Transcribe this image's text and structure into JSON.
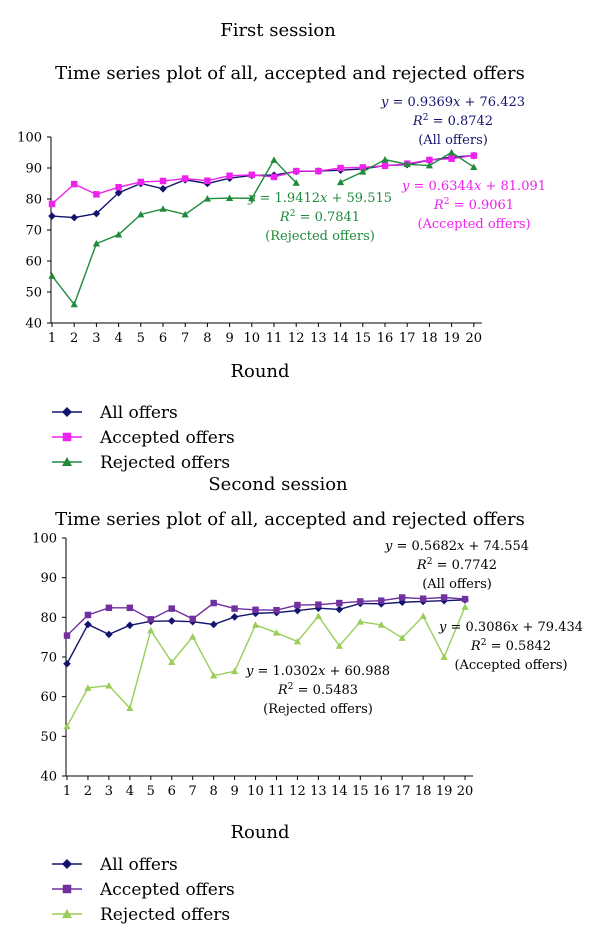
{
  "chart_data": [
    {
      "type": "line",
      "session_title": "First session",
      "title": "Time series plot of all, accepted and rejected offers",
      "xlabel": "Round",
      "ylabel": "",
      "ylim": [
        40,
        100
      ],
      "yticks": [
        "40",
        "50",
        "60",
        "70",
        "80",
        "90",
        "100"
      ],
      "x": [
        1,
        2,
        3,
        4,
        5,
        6,
        7,
        8,
        9,
        10,
        11,
        12,
        13,
        14,
        15,
        16,
        17,
        18,
        19,
        20
      ],
      "xticks": [
        "1",
        "2",
        "3",
        "4",
        "5",
        "6",
        "7",
        "8",
        "9",
        "10",
        "11",
        "12",
        "13",
        "14",
        "15",
        "16",
        "17",
        "18",
        "19",
        "20"
      ],
      "grid": false,
      "legend_position": "bottom",
      "series": [
        {
          "name": "All offers",
          "color": "#14146e",
          "marker": "diamond",
          "values": [
            74.5,
            74.0,
            75.3,
            82.0,
            85.0,
            83.3,
            86.2,
            85.0,
            86.7,
            87.6,
            87.7,
            88.9,
            89.0,
            89.3,
            89.7,
            90.8,
            91.1,
            92.5,
            93.5,
            94.0
          ]
        },
        {
          "name": "Accepted offers",
          "color": "#ee22ee",
          "marker": "square",
          "values": [
            78.4,
            84.8,
            81.5,
            83.8,
            85.5,
            85.8,
            86.6,
            85.9,
            87.5,
            87.8,
            87.1,
            89.0,
            89.0,
            90.0,
            90.2,
            90.7,
            91.4,
            92.6,
            93.0,
            94.0
          ]
        },
        {
          "name": "Rejected offers",
          "color": "#1e8a3a",
          "marker": "triangle",
          "values": [
            55.2,
            46.0,
            65.6,
            68.5,
            75.0,
            76.8,
            75.0,
            80.1,
            80.3,
            80.2,
            92.6,
            85.2,
            null,
            85.4,
            88.8,
            92.7,
            91.2,
            90.8,
            95.0,
            90.3
          ]
        }
      ],
      "annotations": [
        {
          "lines": [
            "y = 0.9369x + 76.423",
            "R2 = 0.8742",
            "(All offers)"
          ],
          "color": "#14146e"
        },
        {
          "lines": [
            "y = 1.9412x + 59.515",
            "R2 = 0.7841",
            "(Rejected offers)"
          ],
          "color": "#1e8a3a"
        },
        {
          "lines": [
            "y = 0.6344x + 81.091",
            "R2 = 0.9061",
            "(Accepted offers)"
          ],
          "color": "#ee22ee"
        }
      ]
    },
    {
      "type": "line",
      "session_title": "Second session",
      "title": "Time series plot of all, accepted and rejected offers",
      "xlabel": "Round",
      "ylabel": "",
      "ylim": [
        40,
        100
      ],
      "yticks": [
        "40",
        "50",
        "60",
        "70",
        "80",
        "90",
        "100"
      ],
      "x": [
        1,
        2,
        3,
        4,
        5,
        6,
        7,
        8,
        9,
        10,
        11,
        12,
        13,
        14,
        15,
        16,
        17,
        18,
        19,
        20
      ],
      "xticks": [
        "1",
        "2",
        "3",
        "4",
        "5",
        "6",
        "7",
        "8",
        "9",
        "10",
        "11",
        "12",
        "13",
        "14",
        "15",
        "16",
        "17",
        "18",
        "19",
        "20"
      ],
      "grid": false,
      "legend_position": "bottom",
      "series": [
        {
          "name": "All offers",
          "color": "#14146e",
          "marker": "diamond",
          "values": [
            68.3,
            78.2,
            75.7,
            78.0,
            79.0,
            79.1,
            78.9,
            78.2,
            80.1,
            81.0,
            81.2,
            81.7,
            82.3,
            82.0,
            83.5,
            83.4,
            83.8,
            84.0,
            84.2,
            84.4
          ]
        },
        {
          "name": "Accepted offers",
          "color": "#7030a0",
          "marker": "square",
          "values": [
            75.4,
            80.6,
            82.4,
            82.4,
            79.5,
            82.2,
            79.6,
            83.6,
            82.2,
            81.9,
            81.8,
            83.1,
            83.2,
            83.6,
            84.0,
            84.2,
            85.0,
            84.7,
            85.0,
            84.6
          ]
        },
        {
          "name": "Rejected offers",
          "color": "#9acd5a",
          "marker": "triangle",
          "values": [
            52.5,
            62.2,
            62.8,
            57.1,
            76.7,
            68.7,
            75.1,
            65.3,
            66.4,
            78.1,
            76.1,
            73.9,
            80.3,
            72.8,
            78.9,
            78.1,
            74.8,
            80.3,
            70.0,
            82.6
          ]
        }
      ],
      "annotations": [
        {
          "lines": [
            "y = 0.5682x + 74.554",
            "R2 = 0.7742",
            "(All offers)"
          ],
          "color": "#000000"
        },
        {
          "lines": [
            "y = 0.3086x + 79.434",
            "R2 = 0.5842",
            "(Accepted offers)"
          ],
          "color": "#000000"
        },
        {
          "lines": [
            "y = 1.0302x + 60.988",
            "R2 = 0.5483",
            "(Rejected offers)"
          ],
          "color": "#000000"
        }
      ]
    }
  ]
}
